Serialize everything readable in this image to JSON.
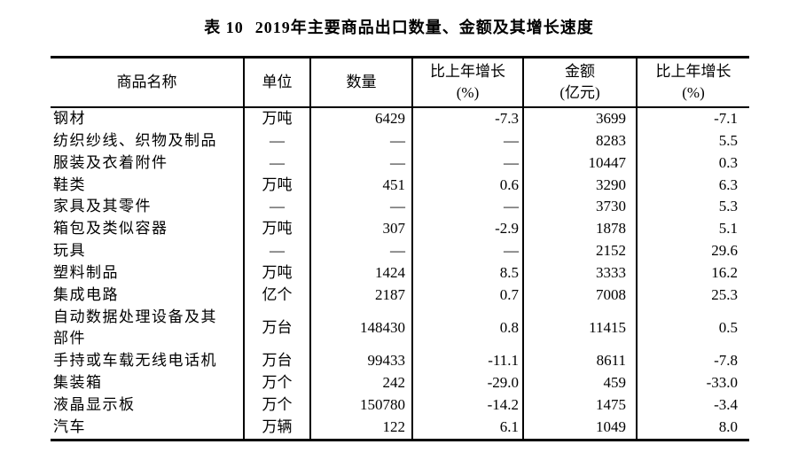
{
  "page": {
    "background_color": "#ffffff",
    "text_color": "#000000",
    "border_color": "#000000"
  },
  "title": {
    "prefix": "表 10",
    "text": "2019年主要商品出口数量、金额及其增长速度"
  },
  "table": {
    "headers": [
      {
        "line1": "商品名称",
        "line2": ""
      },
      {
        "line1": "单位",
        "line2": ""
      },
      {
        "line1": "数量",
        "line2": ""
      },
      {
        "line1": "比上年增长",
        "line2": "(%)"
      },
      {
        "line1": "金额",
        "line2": "(亿元)"
      },
      {
        "line1": "比上年增长",
        "line2": "(%)"
      }
    ],
    "placeholder_dash": "—",
    "rows": [
      {
        "name": "钢材",
        "unit": "万吨",
        "quantity": "6429",
        "quantity_growth": "-7.3",
        "value": "3699",
        "value_growth": "-7.1"
      },
      {
        "name": "纺织纱线、织物及制品",
        "unit": "—",
        "quantity": "—",
        "quantity_growth": "—",
        "value": "8283",
        "value_growth": "5.5"
      },
      {
        "name": "服装及衣着附件",
        "unit": "—",
        "quantity": "—",
        "quantity_growth": "—",
        "value": "10447",
        "value_growth": "0.3"
      },
      {
        "name": "鞋类",
        "unit": "万吨",
        "quantity": "451",
        "quantity_growth": "0.6",
        "value": "3290",
        "value_growth": "6.3"
      },
      {
        "name": "家具及其零件",
        "unit": "—",
        "quantity": "—",
        "quantity_growth": "—",
        "value": "3730",
        "value_growth": "5.3"
      },
      {
        "name": "箱包及类似容器",
        "unit": "万吨",
        "quantity": "307",
        "quantity_growth": "-2.9",
        "value": "1878",
        "value_growth": "5.1"
      },
      {
        "name": "玩具",
        "unit": "—",
        "quantity": "—",
        "quantity_growth": "—",
        "value": "2152",
        "value_growth": "29.6"
      },
      {
        "name": "塑料制品",
        "unit": "万吨",
        "quantity": "1424",
        "quantity_growth": "8.5",
        "value": "3333",
        "value_growth": "16.2"
      },
      {
        "name": "集成电路",
        "unit": "亿个",
        "quantity": "2187",
        "quantity_growth": "0.7",
        "value": "7008",
        "value_growth": "25.3"
      },
      {
        "name": "自动数据处理设备及其部件",
        "unit": "万台",
        "quantity": "148430",
        "quantity_growth": "0.8",
        "value": "11415",
        "value_growth": "0.5",
        "tall": true
      },
      {
        "name": "手持或车载无线电话机",
        "unit": "万台",
        "quantity": "99433",
        "quantity_growth": "-11.1",
        "value": "8611",
        "value_growth": "-7.8"
      },
      {
        "name": "集装箱",
        "unit": "万个",
        "quantity": "242",
        "quantity_growth": "-29.0",
        "value": "459",
        "value_growth": "-33.0"
      },
      {
        "name": "液晶显示板",
        "unit": "万个",
        "quantity": "150780",
        "quantity_growth": "-14.2",
        "value": "1475",
        "value_growth": "-3.4"
      },
      {
        "name": "汽车",
        "unit": "万辆",
        "quantity": "122",
        "quantity_growth": "6.1",
        "value": "1049",
        "value_growth": "8.0"
      }
    ]
  }
}
